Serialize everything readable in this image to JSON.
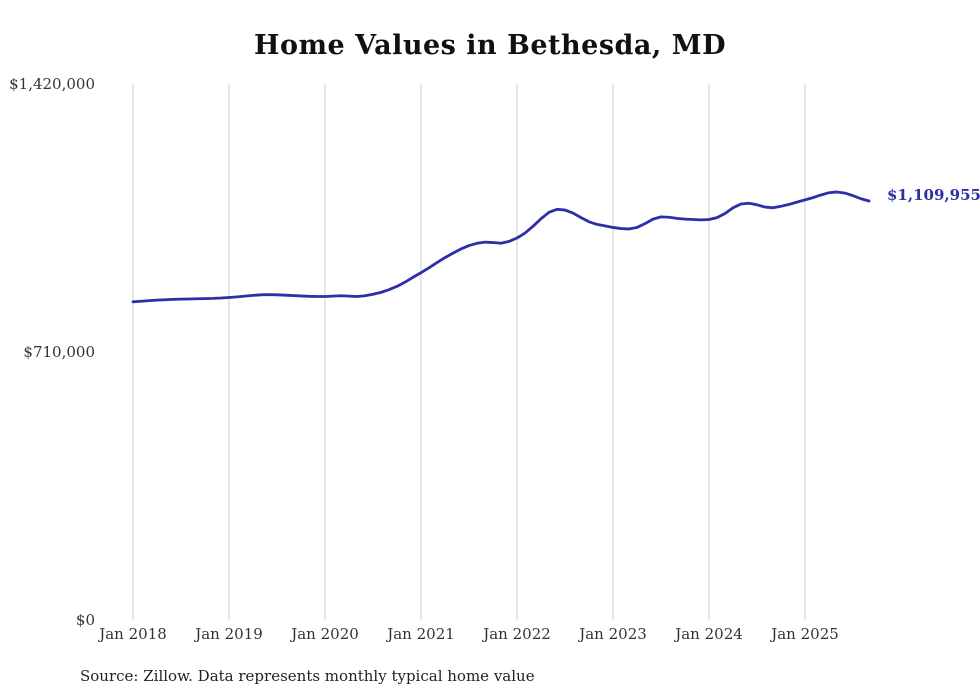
{
  "page": {
    "title": "Home Values in Bethesda, MD",
    "source_note": "Source: Zillow. Data represents monthly typical home value"
  },
  "colors": {
    "line": "#2e2ea8",
    "gridline": "#cccccc",
    "text": "#333333"
  },
  "chart_data": {
    "type": "line",
    "title": "Home Values in Bethesda, MD",
    "xlabel": "",
    "ylabel": "",
    "ylim": [
      0,
      1420000
    ],
    "grid": "vertical-only",
    "legend": "none",
    "y_ticks": [
      "$1,420,000",
      "$710,000",
      "$0"
    ],
    "x_tick_labels": [
      "Jan 2018",
      "Jan 2019",
      "Jan 2020",
      "Jan 2021",
      "Jan 2022",
      "Jan 2023",
      "Jan 2024",
      "Jan 2025"
    ],
    "final_value": 1109955,
    "final_value_label": "$1,109,955",
    "series": [
      {
        "name": "Typical home value (monthly)",
        "start_month": "Jan 2018",
        "end_month": "Sep 2025",
        "interval": "monthly",
        "values": [
          843000,
          844500,
          846000,
          847500,
          848500,
          849500,
          850000,
          850500,
          851000,
          851500,
          852000,
          853000,
          854500,
          856000,
          858000,
          860000,
          861500,
          862000,
          861500,
          860500,
          859500,
          858500,
          857500,
          857000,
          857000,
          858000,
          859000,
          858000,
          857000,
          859000,
          863000,
          868000,
          875000,
          884000,
          895000,
          908000,
          920000,
          933000,
          947000,
          960000,
          972000,
          983000,
          992000,
          998000,
          1001000,
          1000000,
          998000,
          1003000,
          1012000,
          1025000,
          1043000,
          1063000,
          1080000,
          1088000,
          1086000,
          1078000,
          1066000,
          1055000,
          1048000,
          1044000,
          1040000,
          1037000,
          1036000,
          1040000,
          1050000,
          1062000,
          1068000,
          1067000,
          1064000,
          1062000,
          1061000,
          1060000,
          1061000,
          1066000,
          1077000,
          1092000,
          1102000,
          1104000,
          1100000,
          1094000,
          1092000,
          1096000,
          1101000,
          1107000,
          1113000,
          1119000,
          1126000,
          1132000,
          1134000,
          1131000,
          1124000,
          1116000,
          1109955
        ]
      }
    ]
  }
}
